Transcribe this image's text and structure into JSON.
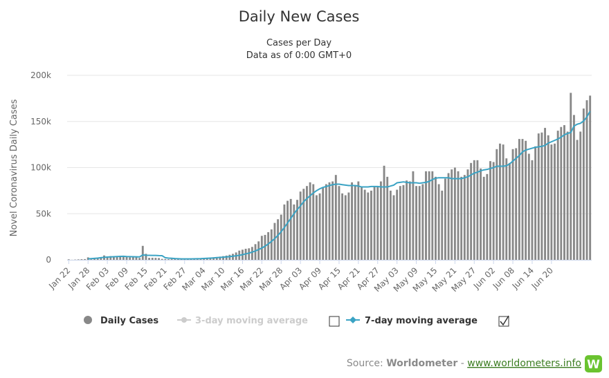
{
  "chart_data": {
    "type": "bar",
    "title": "Daily New Cases",
    "subtitle_lines": [
      "Cases per Day",
      "Data as of 0:00 GMT+0"
    ],
    "ylabel": "Novel Coronavirus Daily Cases",
    "ylim": [
      0,
      200000
    ],
    "yticks": [
      0,
      50000,
      100000,
      150000,
      200000
    ],
    "ytick_labels": [
      "0",
      "50k",
      "100k",
      "150k",
      "200k"
    ],
    "xtick_labels": [
      "Jan 22",
      "Jan 28",
      "Feb 03",
      "Feb 09",
      "Feb 15",
      "Feb 21",
      "Feb 27",
      "Mar 04",
      "Mar 10",
      "Mar 16",
      "Mar 22",
      "Mar 28",
      "Apr 03",
      "Apr 09",
      "Apr 15",
      "Apr 21",
      "Apr 27",
      "May 03",
      "May 09",
      "May 15",
      "May 21",
      "May 27",
      "Jun 02",
      "Jun 08",
      "Jun 14",
      "Jun 20"
    ],
    "tick_every_days": 6,
    "grid": true,
    "legend_position": "bottom",
    "series": [
      {
        "name": "Daily Cases",
        "kind": "bar",
        "color": "#888888",
        "visible": true,
        "values": [
          555,
          98,
          288,
          493,
          684,
          809,
          2651,
          588,
          2068,
          1693,
          2111,
          4749,
          3094,
          4011,
          3743,
          3915,
          4106,
          3156,
          3530,
          2728,
          3077,
          2636,
          2017,
          15137,
          6517,
          2145,
          2200,
          2100,
          1900,
          1000,
          900,
          700,
          1000,
          900,
          800,
          900,
          1000,
          1200,
          1300,
          1500,
          1700,
          1800,
          2000,
          2200,
          2400,
          2800,
          3000,
          3500,
          4000,
          4600,
          5500,
          6500,
          8000,
          10000,
          11000,
          12000,
          12500,
          14000,
          17000,
          20000,
          26000,
          27000,
          30000,
          33000,
          40000,
          44000,
          49000,
          60000,
          64000,
          66000,
          60000,
          65000,
          74000,
          77000,
          80000,
          84000,
          82000,
          70000,
          72000,
          78000,
          82000,
          84000,
          85000,
          92000,
          80000,
          72000,
          70000,
          73000,
          84000,
          80000,
          85000,
          79000,
          76000,
          73000,
          75000,
          80000,
          79000,
          85000,
          102000,
          90000,
          75000,
          70000,
          76000,
          80000,
          81000,
          86000,
          85000,
          96000,
          80000,
          80000,
          82000,
          96000,
          96000,
          96000,
          90000,
          82000,
          75000,
          88000,
          94000,
          98000,
          100000,
          96000,
          90000,
          92000,
          98000,
          105000,
          108000,
          108000,
          99000,
          90000,
          93000,
          107000,
          106000,
          120000,
          126000,
          125000,
          110000,
          105000,
          120000,
          121000,
          131000,
          131000,
          129000,
          115000,
          108000,
          123000,
          137000,
          138000,
          143000,
          135000,
          125000,
          126000,
          140000,
          144000,
          146000,
          139000,
          181000,
          157000,
          130000,
          139000,
          164000,
          173000,
          178000
        ]
      },
      {
        "name": "3-day moving average",
        "kind": "line",
        "color": "#cccccc",
        "visible": false
      },
      {
        "name": "7-day moving average",
        "kind": "line",
        "color": "#3aa3c4",
        "visible": true,
        "start_index": 6,
        "values": [
          1000,
          1300,
          1600,
          1900,
          2300,
          2700,
          3000,
          3200,
          3400,
          3600,
          3700,
          3800,
          3600,
          3500,
          3400,
          3300,
          3200,
          5300,
          5000,
          4900,
          4800,
          4800,
          4600,
          4500,
          2300,
          1900,
          1700,
          1400,
          1200,
          1000,
          1000,
          1000,
          1000,
          1100,
          1200,
          1300,
          1500,
          1700,
          1900,
          2100,
          2400,
          2600,
          2900,
          3200,
          3500,
          3900,
          4400,
          4900,
          5600,
          6500,
          7300,
          8400,
          9600,
          11200,
          12800,
          14800,
          17200,
          20000,
          23000,
          26500,
          30500,
          35000,
          40000,
          45000,
          50000,
          54500,
          58500,
          63000,
          66500,
          69500,
          72500,
          75000,
          77000,
          78500,
          79500,
          80500,
          81500,
          82000,
          82000,
          81500,
          81000,
          80500,
          80500,
          80500,
          80000,
          79000,
          79000,
          79000,
          79500,
          79500,
          79500,
          79000,
          79000,
          79000,
          80000,
          81000,
          83500,
          84000,
          84500,
          84000,
          83500,
          83500,
          83500,
          83000,
          83500,
          84000,
          85000,
          87000,
          88500,
          89000,
          89000,
          89000,
          89000,
          88000,
          88000,
          88000,
          88000,
          89000,
          90000,
          92000,
          94000,
          95000,
          96500,
          97500,
          98000,
          99000,
          100000,
          101500,
          101500,
          101500,
          102000,
          104000,
          107000,
          110000,
          113000,
          117000,
          119000,
          120000,
          121000,
          122000,
          122500,
          123000,
          124000,
          126500,
          128000,
          129500,
          131000,
          133000,
          135500,
          137000,
          138000,
          145000,
          147000,
          148000,
          150500,
          155000,
          161000
        ]
      }
    ]
  },
  "legend": {
    "items": [
      {
        "label": "Daily Cases"
      },
      {
        "label": "3-day moving average"
      },
      {
        "label": "7-day moving average"
      }
    ]
  },
  "credits": {
    "source_label": "Source:",
    "source_name": "Worldometer",
    "separator": "-",
    "link_text": "www.worldometers.info",
    "logo_letter": "W"
  },
  "colors": {
    "bar": "#888888",
    "ma7": "#3aa3c4",
    "ma3_muted": "#cccccc",
    "grid": "#e6e6e6",
    "logo_green": "#6ac330",
    "link_green": "#3c7d22"
  }
}
